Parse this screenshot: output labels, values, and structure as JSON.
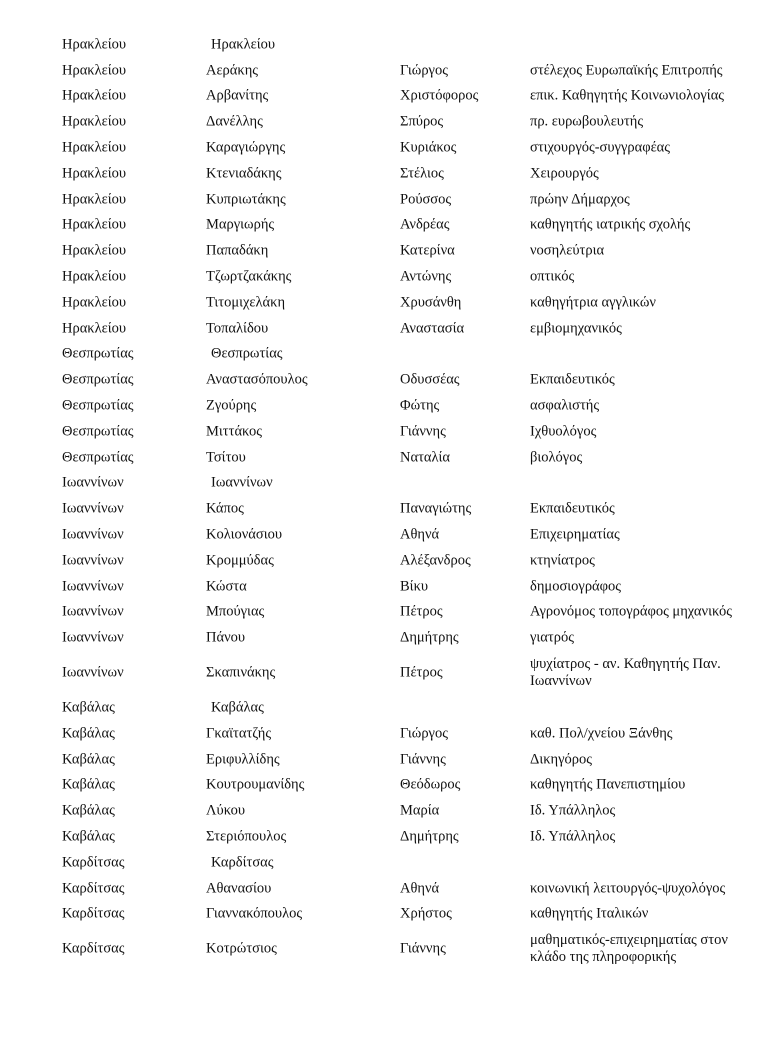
{
  "rows": [
    {
      "region": "Ηρακλείου",
      "surname": "Ηρακλείου",
      "name": "",
      "occupation": "",
      "group_header": true
    },
    {
      "region": "Ηρακλείου",
      "surname": "Αεράκης",
      "name": "Γιώργος",
      "occupation": "στέλεχος Ευρωπαϊκής Επιτροπής"
    },
    {
      "region": "Ηρακλείου",
      "surname": "Αρβανίτης",
      "name": "Χριστόφορος",
      "occupation": "επικ. Καθηγητής Κοινωνιολογίας"
    },
    {
      "region": "Ηρακλείου",
      "surname": "Δανέλλης",
      "name": "Σπύρος",
      "occupation": "πρ. ευρωβουλευτής"
    },
    {
      "region": "Ηρακλείου",
      "surname": "Καραγιώργης",
      "name": "Κυριάκος",
      "occupation": "στιχουργός-συγγραφέας"
    },
    {
      "region": "Ηρακλείου",
      "surname": "Κτενιαδάκης",
      "name": "Στέλιος",
      "occupation": "Χειρουργός"
    },
    {
      "region": "Ηρακλείου",
      "surname": "Κυπριωτάκης",
      "name": "Ρούσσος",
      "occupation": "πρώην Δήμαρχος"
    },
    {
      "region": "Ηρακλείου",
      "surname": "Μαργιωρής",
      "name": "Ανδρέας",
      "occupation": "καθηγητής ιατρικής σχολής"
    },
    {
      "region": "Ηρακλείου",
      "surname": "Παπαδάκη",
      "name": "Κατερίνα",
      "occupation": "νοσηλεύτρια"
    },
    {
      "region": "Ηρακλείου",
      "surname": "Τζωρτζακάκης",
      "name": "Αντώνης",
      "occupation": "οπτικός"
    },
    {
      "region": "Ηρακλείου",
      "surname": "Τιτομιχελάκη",
      "name": "Χρυσάνθη",
      "occupation": "καθηγήτρια αγγλικών"
    },
    {
      "region": "Ηρακλείου",
      "surname": "Τοπαλίδου",
      "name": "Αναστασία",
      "occupation": "εμβιομηχανικός"
    },
    {
      "region": "Θεσπρωτίας",
      "surname": "Θεσπρωτίας",
      "name": "",
      "occupation": "",
      "group_header": true
    },
    {
      "region": "Θεσπρωτίας",
      "surname": "Αναστασόπουλος",
      "name": "Οδυσσέας",
      "occupation": "Εκπαιδευτικός"
    },
    {
      "region": "Θεσπρωτίας",
      "surname": "Ζγούρης",
      "name": "Φώτης",
      "occupation": "ασφαλιστής"
    },
    {
      "region": "Θεσπρωτίας",
      "surname": "Μιττάκος",
      "name": "Γιάννης",
      "occupation": "Ιχθυολόγος"
    },
    {
      "region": "Θεσπρωτίας",
      "surname": "Τσίτου",
      "name": "Ναταλία",
      "occupation": "βιολόγος"
    },
    {
      "region": "Ιωαννίνων",
      "surname": "Ιωαννίνων",
      "name": "",
      "occupation": "",
      "group_header": true
    },
    {
      "region": "Ιωαννίνων",
      "surname": "Κάπος",
      "name": "Παναγιώτης",
      "occupation": "Εκπαιδευτικός"
    },
    {
      "region": "Ιωαννίνων",
      "surname": "Κολιονάσιου",
      "name": "Αθηνά",
      "occupation": "Επιχειρηματίας"
    },
    {
      "region": "Ιωαννίνων",
      "surname": "Κρομμύδας",
      "name": "Αλέξανδρος",
      "occupation": "κτηνίατρος"
    },
    {
      "region": "Ιωαννίνων",
      "surname": "Κώστα",
      "name": "Βίκυ",
      "occupation": "δημοσιογράφος"
    },
    {
      "region": "Ιωαννίνων",
      "surname": "Μπούγιας",
      "name": "Πέτρος",
      "occupation": "Αγρονόμος τοπογράφος μηχανικός"
    },
    {
      "region": "Ιωαννίνων",
      "surname": "Πάνου",
      "name": "Δημήτρης",
      "occupation": "γιατρός"
    },
    {
      "region": "Ιωαννίνων",
      "surname": "Σκαπινάκης",
      "name": "Πέτρος",
      "occupation": "ψυχίατρος - αν. Καθηγητής Παν. Ιωαννίνων",
      "tall": true
    },
    {
      "region": "Καβάλας",
      "surname": "Καβάλας",
      "name": "",
      "occupation": "",
      "group_header": true
    },
    {
      "region": "Καβάλας",
      "surname": "Γκαϊτατζής",
      "name": "Γιώργος",
      "occupation": "καθ. Πολ/χνείου Ξάνθης"
    },
    {
      "region": "Καβάλας",
      "surname": "Εριφυλλίδης",
      "name": "Γιάννης",
      "occupation": "Δικηγόρος"
    },
    {
      "region": "Καβάλας",
      "surname": "Κουτρουμανίδης",
      "name": "Θεόδωρος",
      "occupation": "καθηγητής Πανεπιστημίου"
    },
    {
      "region": "Καβάλας",
      "surname": "Λύκου",
      "name": "Μαρία",
      "occupation": "Ιδ. Υπάλληλος"
    },
    {
      "region": "Καβάλας",
      "surname": "Στεριόπουλος",
      "name": "Δημήτρης",
      "occupation": "Ιδ. Υπάλληλος"
    },
    {
      "region": "Καρδίτσας",
      "surname": "Καρδίτσας",
      "name": "",
      "occupation": "",
      "group_header": true
    },
    {
      "region": "Καρδίτσας",
      "surname": "Αθανασίου",
      "name": "Αθηνά",
      "occupation": "κοινωνική λειτουργός-ψυχολόγος"
    },
    {
      "region": "Καρδίτσας",
      "surname": "Γιαννακόπουλος",
      "name": "Χρήστος",
      "occupation": "καθηγητής Ιταλικών"
    },
    {
      "region": "Καρδίτσας",
      "surname": "Κοτρώτσιος",
      "name": "Γιάννης",
      "occupation": "μαθηματικός-επιχειρηματίας στον κλάδο της πληροφορικής",
      "tall": true
    }
  ]
}
